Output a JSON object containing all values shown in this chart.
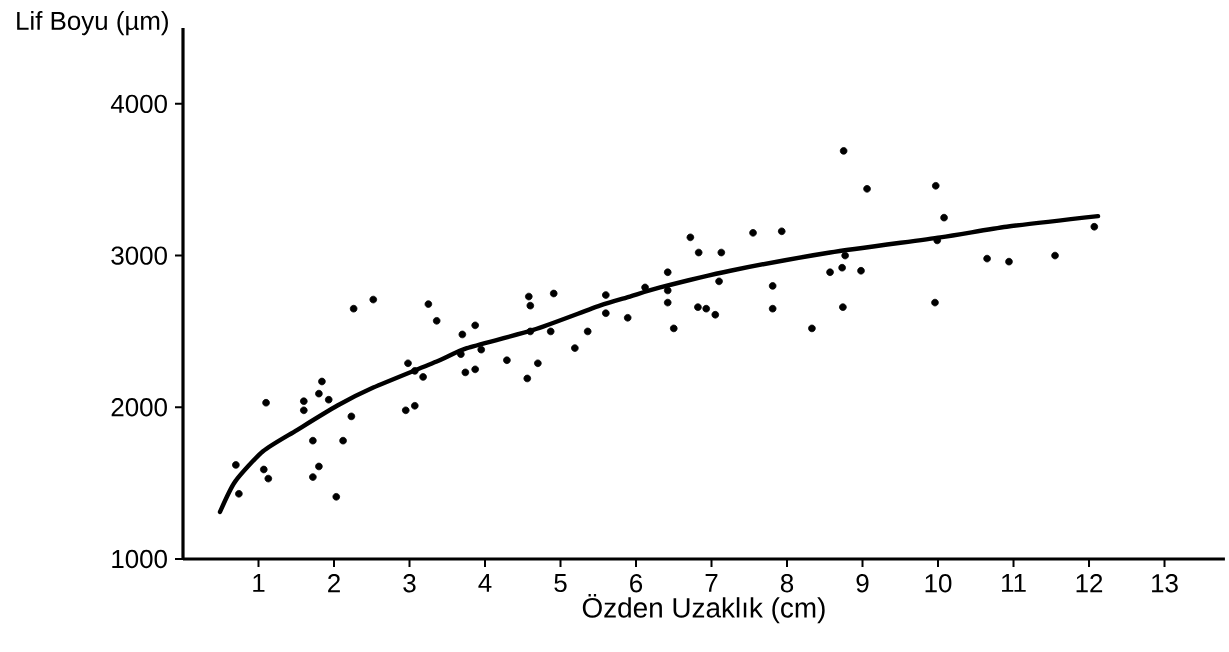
{
  "chart_data": {
    "type": "scatter",
    "xlabel": "Özden Uzaklık (cm)",
    "ylabel": "Lif Boyu (µm)",
    "xlim": [
      0,
      13.8
    ],
    "ylim": [
      1000,
      4500
    ],
    "xticks": [
      1,
      2,
      3,
      4,
      5,
      6,
      7,
      8,
      9,
      10,
      11,
      12,
      13
    ],
    "yticks": [
      1000,
      2000,
      3000,
      4000
    ],
    "marker": "circle",
    "series": [
      {
        "color": "#000000",
        "x": [
          2.26,
          2.52,
          3.25,
          3.36,
          2.98,
          3.07,
          3.18,
          1.84,
          1.8,
          1.6,
          1.93,
          1.1,
          1.6,
          2.23,
          2.95,
          3.07,
          1.72,
          2.12,
          0.7,
          1.07,
          1.13,
          1.8,
          1.72,
          0.74,
          2.03,
          3.7,
          3.87,
          3.68,
          3.95,
          3.74,
          3.87,
          4.29,
          4.58,
          4.6,
          4.91,
          4.6,
          4.87,
          4.7,
          4.56,
          5.19,
          5.36,
          5.6,
          5.6,
          5.89,
          6.12,
          6.72,
          6.83,
          7.13,
          7.55,
          7.93,
          6.42,
          6.42,
          7.1,
          6.42,
          6.82,
          6.93,
          7.05,
          6.5,
          7.81,
          7.81,
          8.33,
          8.57,
          8.73,
          8.98,
          8.74,
          8.77,
          8.75,
          9.06,
          9.97,
          10.08,
          9.96,
          9.99,
          10.65,
          10.94,
          11.55,
          12.07
        ],
        "values": [
          2650,
          2710,
          2680,
          2570,
          2290,
          2240,
          2200,
          2170,
          2090,
          2040,
          2050,
          2030,
          1980,
          1940,
          1980,
          2010,
          1780,
          1780,
          1620,
          1590,
          1530,
          1610,
          1540,
          1430,
          1410,
          2480,
          2540,
          2350,
          2380,
          2230,
          2250,
          2310,
          2730,
          2670,
          2750,
          2500,
          2500,
          2290,
          2190,
          2390,
          2500,
          2740,
          2620,
          2590,
          2790,
          3120,
          3020,
          3020,
          3150,
          3160,
          2890,
          2770,
          2830,
          2690,
          2660,
          2650,
          2610,
          2520,
          2800,
          2650,
          2520,
          2890,
          2920,
          2900,
          2660,
          3000,
          3690,
          3440,
          3460,
          3250,
          2690,
          3100,
          2980,
          2960,
          3000,
          3190
        ]
      },
      {
        "type": "line",
        "color": "#000000",
        "marker": "none",
        "x": [
          0.49,
          0.69,
          1.06,
          1.51,
          2.04,
          2.52,
          3.4,
          3.76,
          4.64,
          5.52,
          5.92,
          6.32,
          7.25,
          8.57,
          10.03,
          10.91,
          12.12
        ],
        "values": [
          1310,
          1510,
          1710,
          1850,
          2010,
          2130,
          2310,
          2390,
          2510,
          2670,
          2730,
          2790,
          2900,
          3020,
          3120,
          3190,
          3260
        ]
      }
    ]
  }
}
